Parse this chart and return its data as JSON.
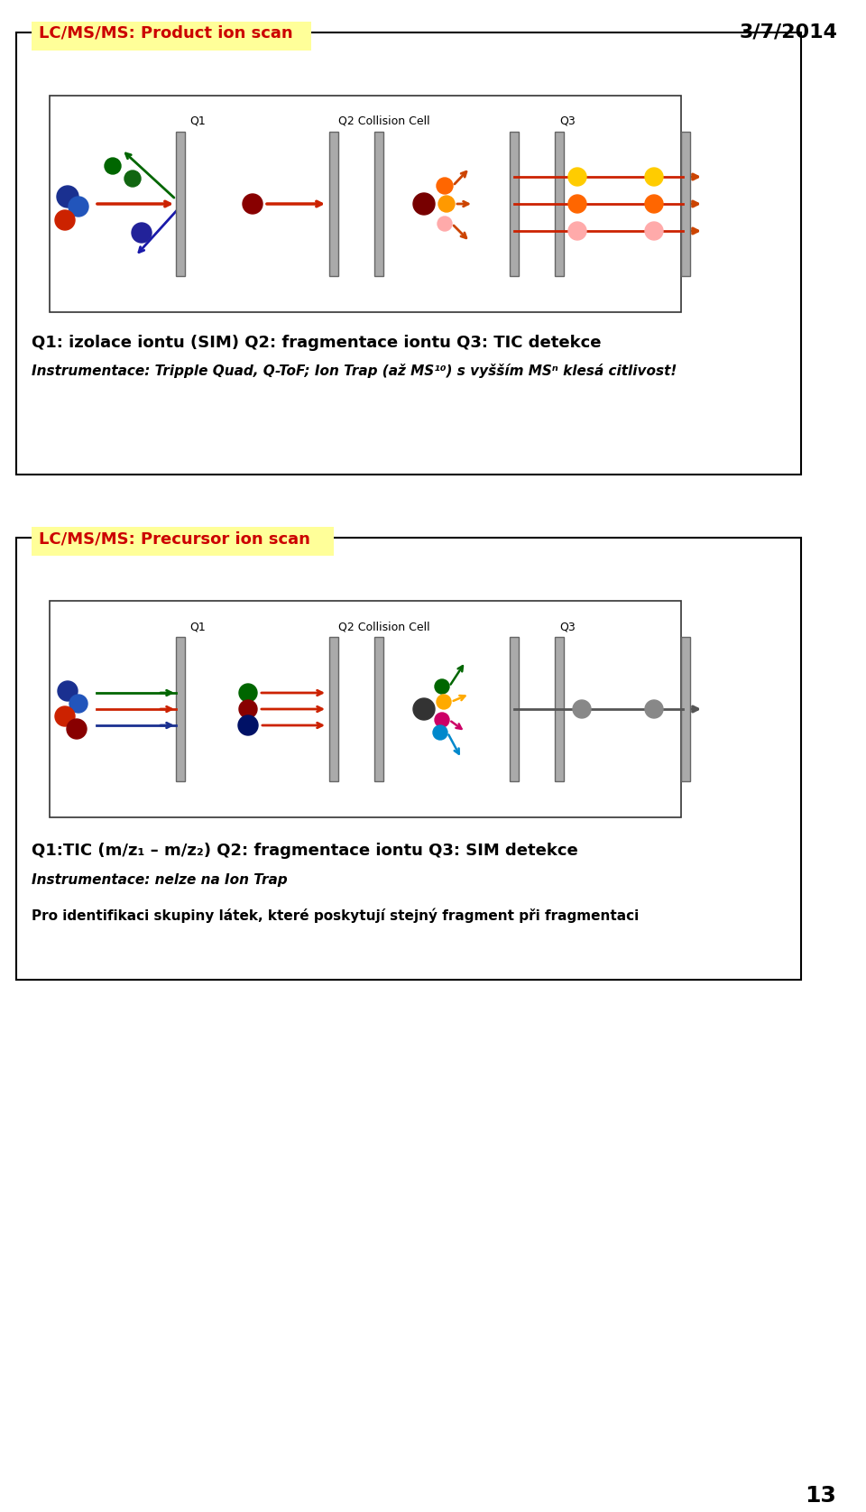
{
  "date_text": "3/7/2014",
  "page_number": "13",
  "bg_color": "#ffffff",
  "box1": {
    "title": "LC/MS/MS: Product ion scan",
    "title_color": "#cc0000",
    "title_bg": "#ffff99",
    "text1": "Q1: izolace iontu (SIM) Q2: fragmentace iontu Q3: TIC detekce",
    "text2": "Instrumentace: Tripple Quad, Q-ToF; Ion Trap (až MS¹⁰) s vyšším MSⁿ klesá citlivost!"
  },
  "box2": {
    "title": "LC/MS/MS: Precursor ion scan",
    "title_color": "#cc0000",
    "title_bg": "#ffff99",
    "text1": "Q1:TIC (m/z₁ – m/z₂) Q2: fragmentace iontu Q3: SIM detekce",
    "text2": "Instrumentace: nelze na Ion Trap",
    "text3": "Pro identifikaci skupiny látek, které poskytují stejný fragment při fragmentaci"
  }
}
